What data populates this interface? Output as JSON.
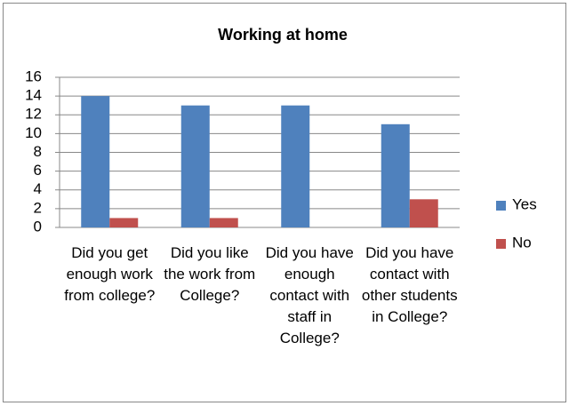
{
  "chart_data": {
    "type": "bar",
    "title": "Working at home",
    "categories": [
      "Did you get enough work from college?",
      "Did you like the work from College?",
      "Did you have enough contact with staff in College?",
      "Did you have contact with other students in College?"
    ],
    "series": [
      {
        "name": "Yes",
        "color": "#4f81bd",
        "values": [
          14,
          13,
          13,
          11
        ]
      },
      {
        "name": "No",
        "color": "#c0504d",
        "values": [
          1,
          1,
          0,
          3
        ]
      }
    ],
    "ylim": [
      0,
      16
    ],
    "yticks": [
      0,
      2,
      4,
      6,
      8,
      10,
      12,
      14,
      16
    ],
    "grid": true,
    "legend": "right"
  }
}
